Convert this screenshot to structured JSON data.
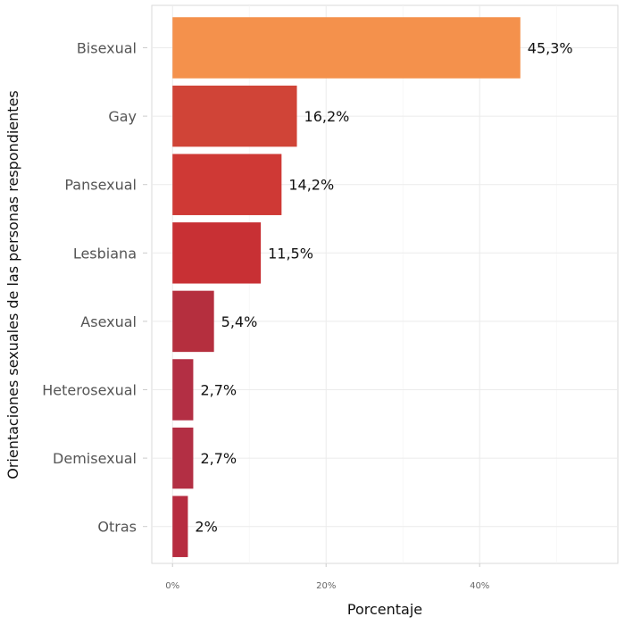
{
  "chart_data": {
    "type": "bar",
    "orientation": "horizontal",
    "categories": [
      "Bisexual",
      "Gay",
      "Pansexual",
      "Lesbiana",
      "Asexual",
      "Heterosexual",
      "Demisexual",
      "Otras"
    ],
    "values": [
      45.3,
      16.2,
      14.2,
      11.5,
      5.4,
      2.7,
      2.7,
      2.0
    ],
    "data_labels": [
      "45,3%",
      "16,2%",
      "14,2%",
      "11,5%",
      "5,4%",
      "2,7%",
      "2,7%",
      "2%"
    ],
    "colors": [
      "#f4914c",
      "#d04437",
      "#cf3935",
      "#c83034",
      "#b52f3e",
      "#b32f44",
      "#b32f44",
      "#b72c40"
    ],
    "xlabel": "Porcentaje",
    "ylabel": "Orientaciones sexuales de las personas respondientes",
    "xticks": [
      0,
      20,
      40
    ],
    "xtick_labels": [
      "0%",
      "20%",
      "40%"
    ],
    "xlim": [
      -2.7,
      58
    ],
    "grid": true,
    "legend": "none"
  }
}
